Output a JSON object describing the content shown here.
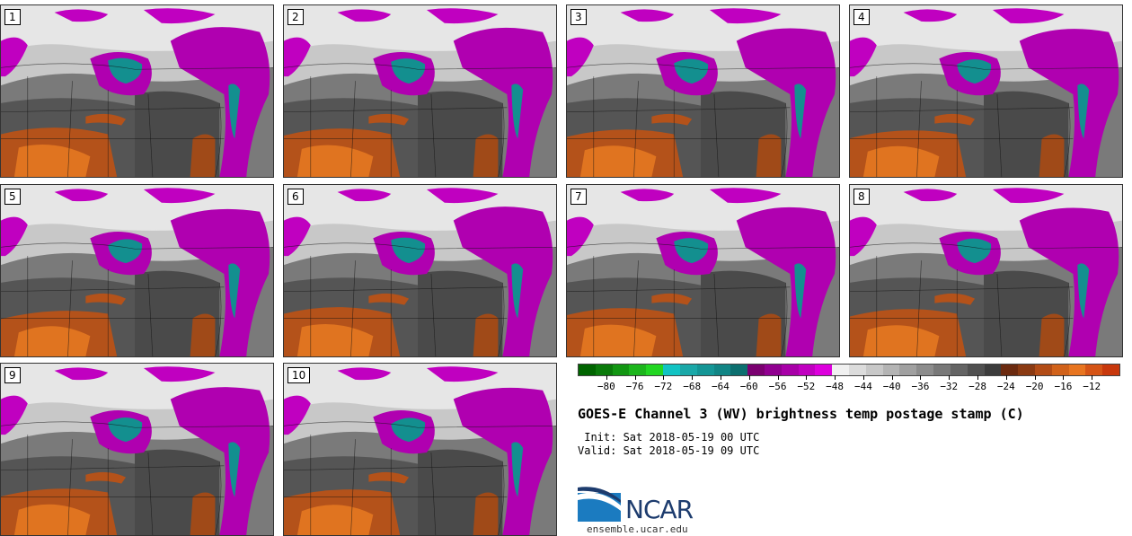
{
  "panels": [
    {
      "label": "1"
    },
    {
      "label": "2"
    },
    {
      "label": "3"
    },
    {
      "label": "4"
    },
    {
      "label": "5"
    },
    {
      "label": "6"
    },
    {
      "label": "7"
    },
    {
      "label": "8"
    },
    {
      "label": "9"
    },
    {
      "label": "10"
    }
  ],
  "colorbar": {
    "colors": [
      "#006400",
      "#0a7a0a",
      "#129612",
      "#1cb51c",
      "#22d622",
      "#11c3c3",
      "#1aa8a8",
      "#149696",
      "#118585",
      "#0c6f6f",
      "#7a0070",
      "#900090",
      "#a800a8",
      "#c000c0",
      "#dd00dd",
      "#f0f0f0",
      "#dcdcdc",
      "#c8c8c8",
      "#b4b4b4",
      "#a0a0a0",
      "#8c8c8c",
      "#787878",
      "#646464",
      "#505050",
      "#3c3c3c",
      "#6b2a0f",
      "#8a3a12",
      "#b24c16",
      "#d1621a",
      "#e87520",
      "#d55416",
      "#c8380c"
    ],
    "tick_labels": [
      "-80",
      "-76",
      "-72",
      "-68",
      "-64",
      "-60",
      "-56",
      "-52",
      "-48",
      "-44",
      "-40",
      "-36",
      "-32",
      "-28",
      "-24",
      "-20",
      "-16",
      "-12"
    ],
    "range": [
      -84,
      -8
    ]
  },
  "title": "GOES-E Channel 3 (WV) brightness temp postage stamp (C)",
  "init": " Init: Sat 2018-05-19 00 UTC",
  "valid": "Valid: Sat 2018-05-19 09 UTC",
  "logo": {
    "text": "NCAR",
    "site": "ensemble.ucar.edu",
    "color": "#1d3c6e",
    "accent": "#1b7bc0"
  }
}
